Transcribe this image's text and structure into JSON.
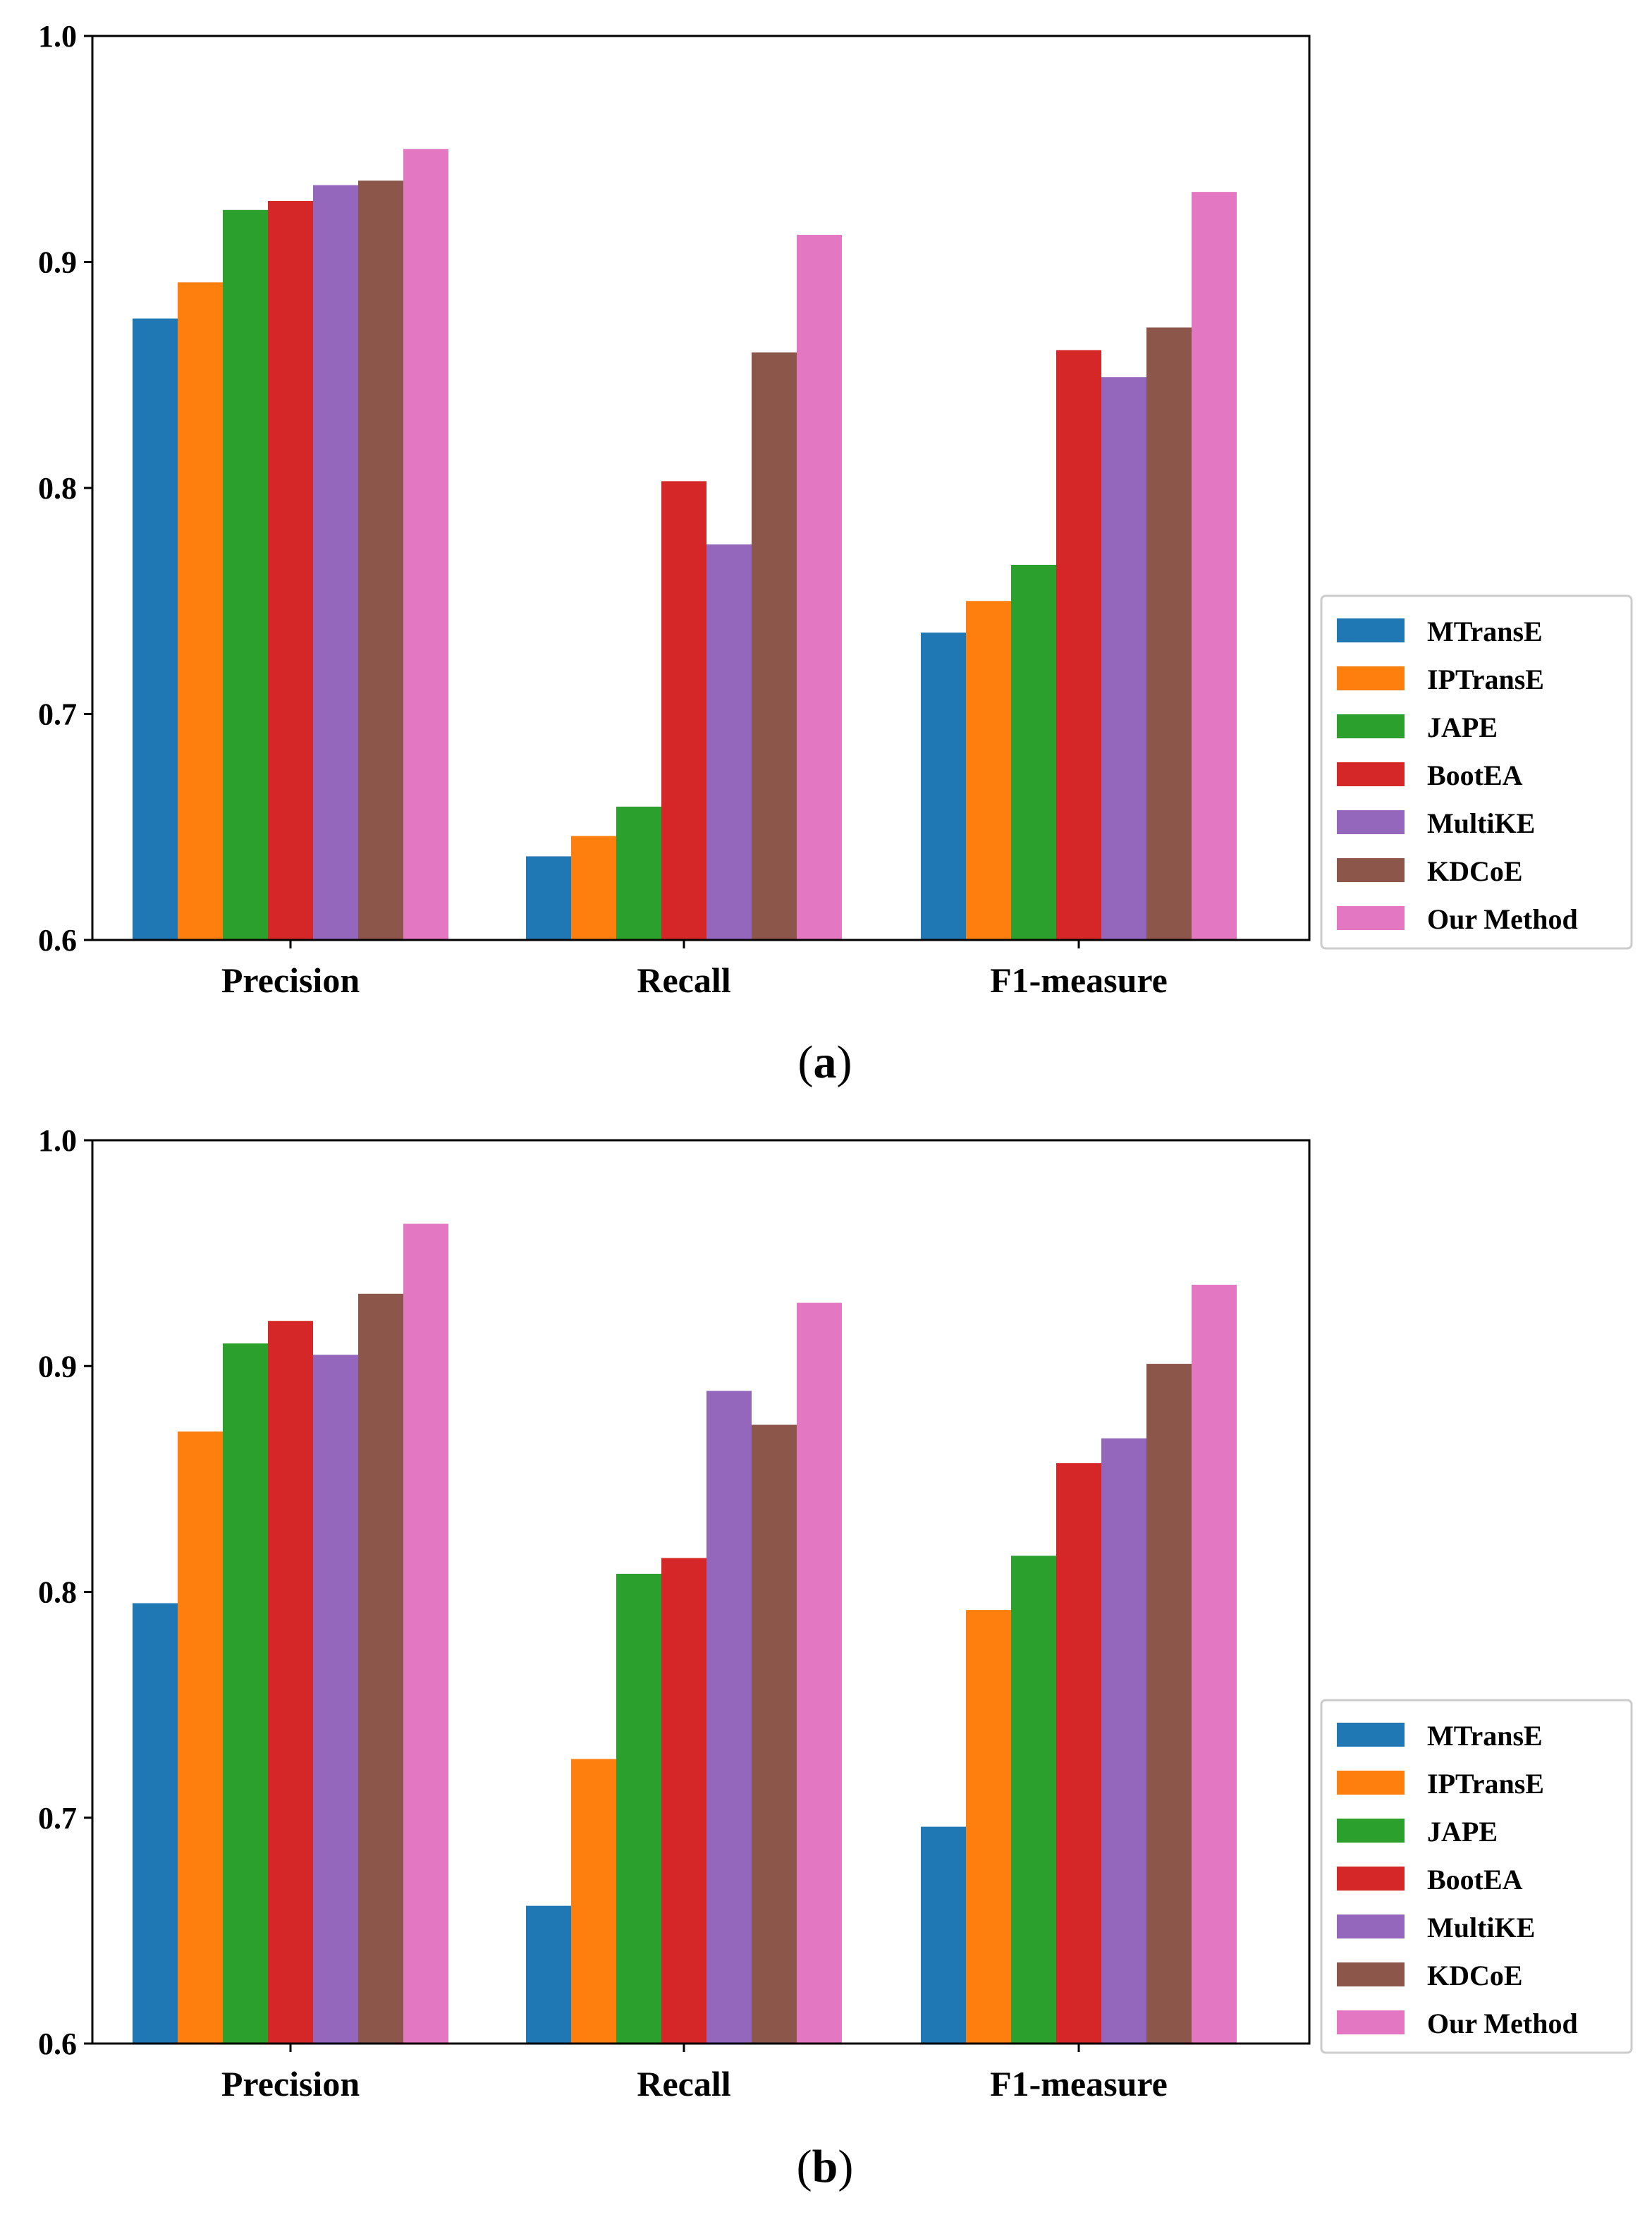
{
  "chart_data": [
    {
      "type": "bar",
      "caption": "a",
      "categories": [
        "Precision",
        "Recall",
        "F1-measure"
      ],
      "ylim": [
        0.6,
        1.0
      ],
      "yticks": [
        "0.6",
        "0.7",
        "0.8",
        "0.9",
        "1.0"
      ],
      "grid": false,
      "legend_position": "right",
      "series": [
        {
          "name": "MTransE",
          "color": "#1f77b4",
          "values": [
            0.875,
            0.637,
            0.736
          ]
        },
        {
          "name": "IPTransE",
          "color": "#ff7f0e",
          "values": [
            0.891,
            0.646,
            0.75
          ]
        },
        {
          "name": "JAPE",
          "color": "#2ca02c",
          "values": [
            0.923,
            0.659,
            0.766
          ]
        },
        {
          "name": "BootEA",
          "color": "#d62728",
          "values": [
            0.927,
            0.803,
            0.861
          ]
        },
        {
          "name": "MultiKE",
          "color": "#9467bd",
          "values": [
            0.934,
            0.775,
            0.849
          ]
        },
        {
          "name": "KDCoE",
          "color": "#8c564b",
          "values": [
            0.936,
            0.86,
            0.871
          ]
        },
        {
          "name": "Our Method",
          "color": "#e377c2",
          "values": [
            0.95,
            0.912,
            0.931
          ]
        }
      ]
    },
    {
      "type": "bar",
      "caption": "b",
      "categories": [
        "Precision",
        "Recall",
        "F1-measure"
      ],
      "ylim": [
        0.6,
        1.0
      ],
      "yticks": [
        "0.6",
        "0.7",
        "0.8",
        "0.9",
        "1.0"
      ],
      "grid": false,
      "legend_position": "right",
      "series": [
        {
          "name": "MTransE",
          "color": "#1f77b4",
          "values": [
            0.795,
            0.661,
            0.696
          ]
        },
        {
          "name": "IPTransE",
          "color": "#ff7f0e",
          "values": [
            0.871,
            0.726,
            0.792
          ]
        },
        {
          "name": "JAPE",
          "color": "#2ca02c",
          "values": [
            0.91,
            0.808,
            0.816
          ]
        },
        {
          "name": "BootEA",
          "color": "#d62728",
          "values": [
            0.92,
            0.815,
            0.857
          ]
        },
        {
          "name": "MultiKE",
          "color": "#9467bd",
          "values": [
            0.905,
            0.889,
            0.868
          ]
        },
        {
          "name": "KDCoE",
          "color": "#8c564b",
          "values": [
            0.932,
            0.874,
            0.901
          ]
        },
        {
          "name": "Our Method",
          "color": "#e377c2",
          "values": [
            0.963,
            0.928,
            0.936
          ]
        }
      ]
    }
  ]
}
